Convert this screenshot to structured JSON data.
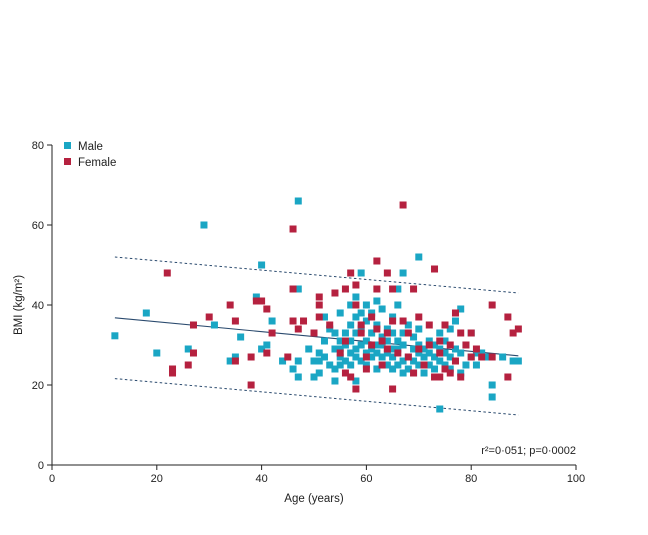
{
  "chart_data": {
    "type": "scatter",
    "xlabel": "Age (years)",
    "ylabel": "BMI (kg/m²)",
    "xlim": [
      0,
      100
    ],
    "ylim": [
      0,
      80
    ],
    "xticks": [
      0,
      20,
      40,
      60,
      80,
      100
    ],
    "yticks": [
      0,
      20,
      40,
      60,
      80
    ],
    "grid": false,
    "legend_position": "top-left",
    "annotation": "r²=0·051; p=0·0002",
    "regression": {
      "x": [
        12,
        89
      ],
      "y": [
        36.8,
        27.3
      ]
    },
    "prediction_upper": {
      "x": [
        12,
        89
      ],
      "y": [
        52,
        43
      ]
    },
    "prediction_lower": {
      "x": [
        12,
        89
      ],
      "y": [
        21.6,
        12.5
      ]
    },
    "series": [
      {
        "name": "Male",
        "color": "#1aa6c4",
        "points": [
          [
            12,
            32.3
          ],
          [
            18,
            38
          ],
          [
            20,
            28
          ],
          [
            26,
            29
          ],
          [
            29,
            60
          ],
          [
            31,
            35
          ],
          [
            34,
            26
          ],
          [
            35,
            27
          ],
          [
            36,
            32
          ],
          [
            39,
            42
          ],
          [
            40,
            50
          ],
          [
            40,
            29
          ],
          [
            41,
            30
          ],
          [
            42,
            36
          ],
          [
            44,
            26
          ],
          [
            46,
            24
          ],
          [
            47,
            66
          ],
          [
            47,
            44
          ],
          [
            47,
            26
          ],
          [
            47,
            22
          ],
          [
            49,
            29
          ],
          [
            50,
            22
          ],
          [
            50,
            26
          ],
          [
            51,
            23
          ],
          [
            51,
            26
          ],
          [
            51,
            28
          ],
          [
            52,
            27
          ],
          [
            52,
            31
          ],
          [
            52,
            37
          ],
          [
            53,
            25
          ],
          [
            53,
            34
          ],
          [
            54,
            24
          ],
          [
            54,
            29
          ],
          [
            54,
            33
          ],
          [
            54,
            21
          ],
          [
            55,
            25
          ],
          [
            55,
            27
          ],
          [
            55,
            29
          ],
          [
            55,
            31
          ],
          [
            55,
            38
          ],
          [
            56,
            26
          ],
          [
            56,
            30
          ],
          [
            56,
            33
          ],
          [
            57,
            25
          ],
          [
            57,
            28
          ],
          [
            57,
            31
          ],
          [
            57,
            35
          ],
          [
            57,
            40
          ],
          [
            58,
            21
          ],
          [
            58,
            27
          ],
          [
            58,
            29
          ],
          [
            58,
            33
          ],
          [
            58,
            37
          ],
          [
            58,
            42
          ],
          [
            59,
            26
          ],
          [
            59,
            30
          ],
          [
            59,
            34
          ],
          [
            59,
            38
          ],
          [
            59,
            48
          ],
          [
            60,
            25
          ],
          [
            60,
            28
          ],
          [
            60,
            31
          ],
          [
            60,
            36
          ],
          [
            60,
            40
          ],
          [
            61,
            27
          ],
          [
            61,
            29
          ],
          [
            61,
            33
          ],
          [
            61,
            38
          ],
          [
            62,
            24
          ],
          [
            62,
            28
          ],
          [
            62,
            30
          ],
          [
            62,
            35
          ],
          [
            62,
            41
          ],
          [
            63,
            27
          ],
          [
            63,
            30
          ],
          [
            63,
            32
          ],
          [
            63,
            39
          ],
          [
            64,
            25
          ],
          [
            64,
            28
          ],
          [
            64,
            31
          ],
          [
            64,
            34
          ],
          [
            65,
            24
          ],
          [
            65,
            27
          ],
          [
            65,
            29
          ],
          [
            65,
            33
          ],
          [
            65,
            37
          ],
          [
            66,
            25
          ],
          [
            66,
            29
          ],
          [
            66,
            31
          ],
          [
            66,
            40
          ],
          [
            66,
            44
          ],
          [
            67,
            23
          ],
          [
            67,
            26
          ],
          [
            67,
            30
          ],
          [
            67,
            33
          ],
          [
            67,
            48
          ],
          [
            68,
            24
          ],
          [
            68,
            27
          ],
          [
            68,
            35
          ],
          [
            69,
            23
          ],
          [
            69,
            26
          ],
          [
            69,
            29
          ],
          [
            69,
            32
          ],
          [
            70,
            52
          ],
          [
            70,
            25
          ],
          [
            70,
            28
          ],
          [
            70,
            30
          ],
          [
            70,
            34
          ],
          [
            71,
            23
          ],
          [
            71,
            27
          ],
          [
            71,
            29
          ],
          [
            72,
            25
          ],
          [
            72,
            28
          ],
          [
            72,
            31
          ],
          [
            73,
            24
          ],
          [
            73,
            27
          ],
          [
            73,
            30
          ],
          [
            74,
            14
          ],
          [
            74,
            26
          ],
          [
            74,
            29
          ],
          [
            74,
            33
          ],
          [
            75,
            25
          ],
          [
            75,
            28
          ],
          [
            75,
            31
          ],
          [
            76,
            24
          ],
          [
            76,
            27
          ],
          [
            76,
            34
          ],
          [
            77,
            26
          ],
          [
            77,
            29
          ],
          [
            77,
            36
          ],
          [
            78,
            23
          ],
          [
            78,
            28
          ],
          [
            78,
            39
          ],
          [
            79,
            25
          ],
          [
            79,
            30
          ],
          [
            80,
            27
          ],
          [
            80,
            33
          ],
          [
            81,
            25
          ],
          [
            81,
            28
          ],
          [
            82,
            28
          ],
          [
            83,
            27
          ],
          [
            84,
            20
          ],
          [
            84,
            17
          ],
          [
            86,
            27
          ],
          [
            88,
            26
          ],
          [
            89,
            26
          ]
        ]
      },
      {
        "name": "Female",
        "color": "#b5213f",
        "points": [
          [
            22,
            48
          ],
          [
            23,
            24
          ],
          [
            23,
            23
          ],
          [
            26,
            25
          ],
          [
            27,
            35
          ],
          [
            27,
            28
          ],
          [
            30,
            37
          ],
          [
            34,
            40
          ],
          [
            35,
            36
          ],
          [
            35,
            26
          ],
          [
            38,
            20
          ],
          [
            38,
            27
          ],
          [
            39,
            41
          ],
          [
            40,
            41
          ],
          [
            41,
            39
          ],
          [
            41,
            28
          ],
          [
            42,
            33
          ],
          [
            45,
            27
          ],
          [
            46,
            59
          ],
          [
            46,
            36
          ],
          [
            46,
            44
          ],
          [
            47,
            34
          ],
          [
            48,
            36
          ],
          [
            50,
            33
          ],
          [
            51,
            42
          ],
          [
            51,
            40
          ],
          [
            51,
            37
          ],
          [
            53,
            35
          ],
          [
            54,
            43
          ],
          [
            55,
            28
          ],
          [
            56,
            44
          ],
          [
            56,
            31
          ],
          [
            56,
            23
          ],
          [
            57,
            48
          ],
          [
            57,
            22
          ],
          [
            58,
            45
          ],
          [
            58,
            40
          ],
          [
            58,
            19
          ],
          [
            59,
            35
          ],
          [
            59,
            33
          ],
          [
            60,
            27
          ],
          [
            60,
            24
          ],
          [
            61,
            37
          ],
          [
            61,
            30
          ],
          [
            62,
            44
          ],
          [
            62,
            51
          ],
          [
            62,
            34
          ],
          [
            63,
            31
          ],
          [
            63,
            25
          ],
          [
            64,
            48
          ],
          [
            64,
            29
          ],
          [
            64,
            33
          ],
          [
            65,
            44
          ],
          [
            65,
            36
          ],
          [
            65,
            19
          ],
          [
            66,
            28
          ],
          [
            67,
            65
          ],
          [
            67,
            36
          ],
          [
            68,
            33
          ],
          [
            68,
            27
          ],
          [
            69,
            23
          ],
          [
            69,
            44
          ],
          [
            70,
            37
          ],
          [
            70,
            29
          ],
          [
            71,
            25
          ],
          [
            72,
            30
          ],
          [
            72,
            35
          ],
          [
            73,
            49
          ],
          [
            73,
            22
          ],
          [
            74,
            31
          ],
          [
            74,
            28
          ],
          [
            74,
            22
          ],
          [
            75,
            35
          ],
          [
            75,
            24
          ],
          [
            76,
            30
          ],
          [
            76,
            23
          ],
          [
            77,
            38
          ],
          [
            77,
            26
          ],
          [
            78,
            33
          ],
          [
            78,
            22
          ],
          [
            79,
            30
          ],
          [
            80,
            27
          ],
          [
            80,
            33
          ],
          [
            81,
            29
          ],
          [
            82,
            27
          ],
          [
            84,
            40
          ],
          [
            84,
            27
          ],
          [
            87,
            37
          ],
          [
            87,
            22
          ],
          [
            88,
            33
          ],
          [
            89,
            34
          ]
        ]
      }
    ]
  }
}
